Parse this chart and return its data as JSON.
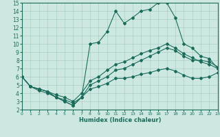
{
  "xlabel": "Humidex (Indice chaleur)",
  "xlim": [
    0,
    23
  ],
  "ylim": [
    2,
    15
  ],
  "xtick_labels": [
    "0",
    "1",
    "2",
    "3",
    "4",
    "5",
    "6",
    "7",
    "8",
    "9",
    "1011121314151617181920212223"
  ],
  "yticks": [
    2,
    3,
    4,
    5,
    6,
    7,
    8,
    9,
    10,
    11,
    12,
    13,
    14,
    15
  ],
  "bg_color": "#cce8e0",
  "grid_color": "#aacfc8",
  "line_color": "#1a6b5a",
  "series_max": [
    6.0,
    4.8,
    4.5,
    4.2,
    3.5,
    3.0,
    2.5,
    3.5,
    10.0,
    10.2,
    11.5,
    14.0,
    12.5,
    13.2,
    14.0,
    14.2,
    15.0,
    15.0,
    13.2,
    10.0,
    9.5,
    8.5,
    8.2,
    7.0
  ],
  "series_min": [
    6.0,
    4.8,
    4.5,
    4.2,
    3.5,
    3.0,
    2.5,
    3.5,
    4.5,
    4.8,
    5.2,
    5.8,
    5.8,
    6.0,
    6.3,
    6.5,
    6.8,
    7.0,
    6.7,
    6.2,
    5.8,
    5.8,
    6.0,
    6.5
  ],
  "series_trend1": [
    6.0,
    4.8,
    4.3,
    4.0,
    3.5,
    3.2,
    2.8,
    3.5,
    5.0,
    5.5,
    6.0,
    6.8,
    7.0,
    7.5,
    8.0,
    8.5,
    9.0,
    9.5,
    9.2,
    8.5,
    8.0,
    8.0,
    7.8,
    7.2
  ],
  "series_trend2": [
    6.0,
    4.8,
    4.5,
    4.2,
    3.8,
    3.5,
    3.0,
    4.0,
    5.5,
    6.0,
    6.8,
    7.5,
    7.8,
    8.3,
    8.8,
    9.2,
    9.5,
    10.0,
    9.5,
    8.8,
    8.3,
    7.8,
    7.5,
    7.0
  ]
}
